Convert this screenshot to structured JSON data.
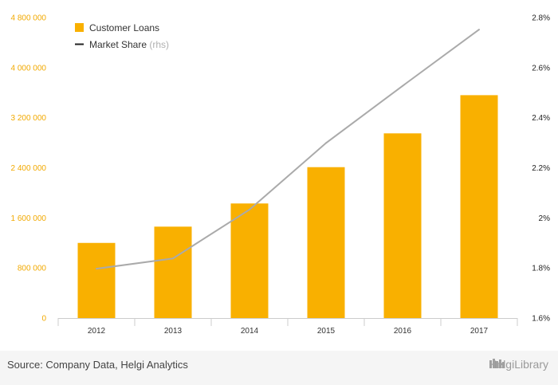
{
  "chart_data": {
    "type": "bar",
    "categories": [
      "2012",
      "2013",
      "2014",
      "2015",
      "2016",
      "2017"
    ],
    "series": [
      {
        "name": "Customer Loans",
        "axis": "left",
        "type": "bar",
        "color": "#f9b000",
        "values": [
          1200000,
          1460000,
          1830000,
          2410000,
          2950000,
          3560000
        ]
      },
      {
        "name": "Market Share",
        "axis": "right",
        "type": "line",
        "color": "#aaaaaa",
        "values": [
          1.797,
          1.838,
          2.033,
          2.299,
          2.527,
          2.752
        ]
      }
    ],
    "left_axis": {
      "min": 0,
      "max": 4800000,
      "ticks": [
        "0",
        "800 000",
        "1 600 000",
        "2 400 000",
        "3 200 000",
        "4 000 000",
        "4 800 000"
      ]
    },
    "right_axis": {
      "min": 1.6,
      "max": 2.8,
      "ticks": [
        "1.6%",
        "1.8%",
        "2%",
        "2.2%",
        "2.4%",
        "2.6%",
        "2.8%"
      ]
    },
    "legend": {
      "position": "top-left",
      "items": [
        {
          "label": "Customer Loans",
          "note": ""
        },
        {
          "label": "Market Share",
          "note": "(rhs)"
        }
      ]
    }
  },
  "source_text": "Source: Company Data, Helgi Analytics",
  "brand_text": "HelgiLibrary"
}
